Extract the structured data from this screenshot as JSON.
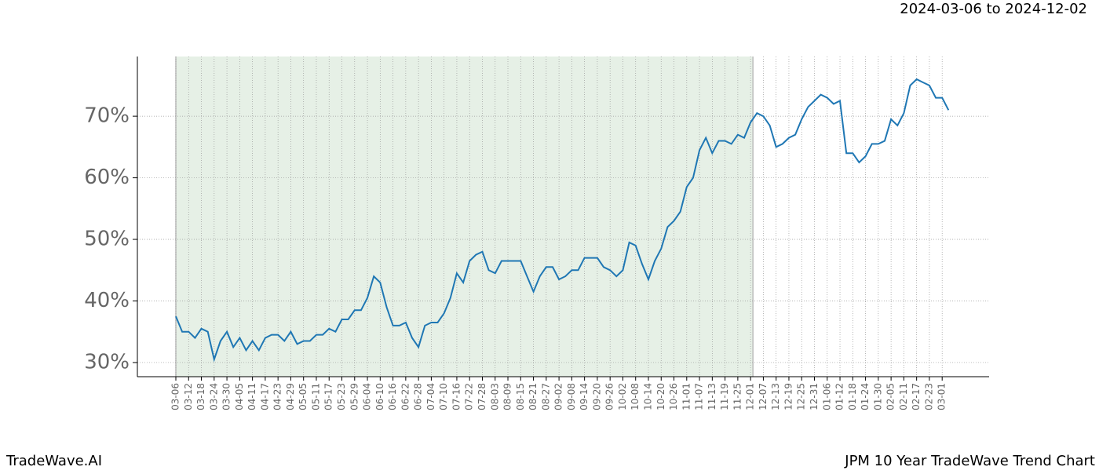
{
  "chart_data": {
    "type": "line",
    "title": "2024-03-06 to 2024-12-02",
    "footer_left": "TradeWave.AI",
    "footer_right": "JPM 10 Year TradeWave Trend Chart",
    "categories": [
      "03-06",
      null,
      "03-12",
      null,
      "03-18",
      null,
      "03-24",
      null,
      "03-30",
      null,
      "04-05",
      null,
      "04-11",
      null,
      "04-17",
      null,
      "04-23",
      null,
      "04-29",
      null,
      "05-05",
      null,
      "05-11",
      null,
      "05-17",
      null,
      "05-23",
      null,
      "05-29",
      null,
      "06-04",
      null,
      "06-10",
      null,
      "06-16",
      null,
      "06-22",
      null,
      "06-28",
      null,
      "07-04",
      null,
      "07-10",
      null,
      "07-16",
      null,
      "07-22",
      null,
      "07-28",
      null,
      "08-03",
      null,
      "08-09",
      null,
      "08-15",
      null,
      "08-21",
      null,
      "08-27",
      null,
      "09-02",
      null,
      "09-08",
      null,
      "09-14",
      null,
      "09-20",
      null,
      "09-26",
      null,
      "10-02",
      null,
      "10-08",
      null,
      "10-14",
      null,
      "10-20",
      null,
      "10-26",
      null,
      "11-01",
      null,
      "11-07",
      null,
      "11-13",
      null,
      "11-19",
      null,
      "11-25",
      null,
      "12-01",
      null,
      "12-07",
      null,
      "12-13",
      null,
      "12-19",
      null,
      "12-25",
      null,
      "12-31",
      null,
      "01-06",
      null,
      "01-12",
      null,
      "01-18",
      null,
      "01-24",
      null,
      "01-30",
      null,
      "02-05",
      null,
      "02-11",
      null,
      "02-17",
      null,
      "02-23",
      null,
      "03-01",
      null
    ],
    "series": [
      {
        "name": "JPM",
        "color": "#1f77b4",
        "values": [
          37.5,
          35,
          35,
          34,
          35.5,
          35,
          30.5,
          33.5,
          35,
          32.5,
          34,
          32,
          33.5,
          32,
          34,
          34.5,
          34.5,
          33.5,
          35,
          33,
          33.5,
          33.5,
          34.5,
          34.5,
          35.5,
          35,
          37,
          37,
          38.5,
          38.5,
          40.5,
          44,
          43,
          39,
          36,
          36,
          36.5,
          34,
          32.5,
          36,
          36.5,
          36.5,
          38,
          40.5,
          44.5,
          43,
          46.5,
          47.5,
          48,
          45,
          44.5,
          46.5,
          46.5,
          46.5,
          46.5,
          44,
          41.5,
          44,
          45.5,
          45.5,
          43.5,
          44,
          45,
          45,
          47,
          47,
          47,
          45.5,
          45,
          44,
          45,
          49.5,
          49,
          46,
          43.5,
          46.5,
          48.5,
          52,
          53,
          54.5,
          58.5,
          60,
          64.5,
          66.5,
          64,
          66,
          66,
          65.5,
          67,
          66.5,
          69,
          70.5,
          70,
          68.5,
          65,
          65.5,
          66.5,
          67,
          69.5,
          71.5,
          72.5,
          73.5,
          73,
          72,
          72.5,
          64,
          64,
          62.5,
          63.5,
          65.5,
          65.5,
          66,
          69.5,
          68.5,
          70.5,
          75,
          76,
          75.5,
          75,
          73,
          73,
          71
        ]
      }
    ],
    "highlight": {
      "start": "03-06",
      "end": "12-01",
      "color": "#e6f0e6"
    },
    "ylim": [
      27.7,
      79.7
    ],
    "yticks": [
      {
        "value": 30,
        "label": "30%"
      },
      {
        "value": 40,
        "label": "40%"
      },
      {
        "value": 50,
        "label": "50%"
      },
      {
        "value": 60,
        "label": "60%"
      },
      {
        "value": 70,
        "label": "70%"
      }
    ],
    "grid": true
  }
}
